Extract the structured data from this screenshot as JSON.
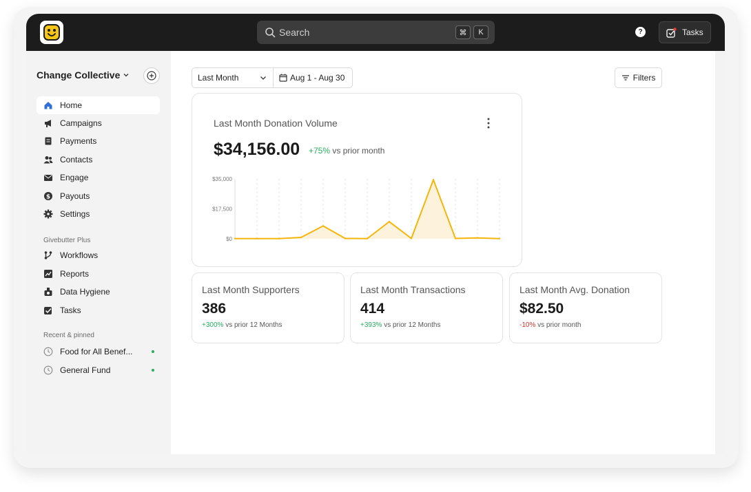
{
  "topbar": {
    "search_placeholder": "Search",
    "shortcut_keys": [
      "⌘",
      "K"
    ],
    "help_label": "?",
    "tasks_label": "Tasks"
  },
  "sidebar": {
    "org_name": "Change Collective",
    "nav": [
      {
        "label": "Home",
        "icon": "home-icon",
        "active": true
      },
      {
        "label": "Campaigns",
        "icon": "megaphone-icon"
      },
      {
        "label": "Payments",
        "icon": "receipt-icon"
      },
      {
        "label": "Contacts",
        "icon": "users-icon"
      },
      {
        "label": "Engage",
        "icon": "envelope-icon"
      },
      {
        "label": "Payouts",
        "icon": "dollar-icon"
      },
      {
        "label": "Settings",
        "icon": "gear-icon"
      }
    ],
    "plus_label": "Givebutter Plus",
    "plus_nav": [
      {
        "label": "Workflows",
        "icon": "workflow-icon"
      },
      {
        "label": "Reports",
        "icon": "chart-icon"
      },
      {
        "label": "Data Hygiene",
        "icon": "broom-icon"
      },
      {
        "label": "Tasks",
        "icon": "checkbox-icon"
      }
    ],
    "recent_label": "Recent & pinned",
    "recent": [
      {
        "label": "Food for All Benef...",
        "icon": "clock-icon"
      },
      {
        "label": "General Fund",
        "icon": "clock-icon"
      }
    ]
  },
  "toolbar": {
    "range_select": "Last Month",
    "date_range": "Aug 1 - Aug 30",
    "filters_label": "Filters"
  },
  "volume_card": {
    "title": "Last Month Donation Volume",
    "value": "$34,156.00",
    "change": "+75%",
    "change_suffix": "vs prior month"
  },
  "stats": [
    {
      "title": "Last Month Supporters",
      "value": "386",
      "change": "+300%",
      "change_suffix": "vs prior 12 Months",
      "trend": "up"
    },
    {
      "title": "Last Month Transactions",
      "value": "414",
      "change": "+393%",
      "change_suffix": "vs prior 12 Months",
      "trend": "up"
    },
    {
      "title": "Last Month Avg. Donation",
      "value": "$82.50",
      "change": "-10%",
      "change_suffix": "vs prior month",
      "trend": "down"
    }
  ],
  "chart_data": {
    "type": "area",
    "x": [
      1,
      2,
      3,
      4,
      5,
      6,
      7,
      8,
      9,
      10,
      11,
      12,
      13
    ],
    "series": [
      {
        "values": [
          100,
          100,
          100,
          800,
          7500,
          200,
          100,
          10000,
          200,
          34500,
          200,
          500,
          100
        ]
      }
    ],
    "ylim": [
      0,
      35000
    ],
    "yticks": [
      "$0",
      "$17,500",
      "$35,000"
    ],
    "grid": "vertical dashed",
    "color": "#f5b50a",
    "fill": "#fdf3dc"
  },
  "colors": {
    "topbar": "#1c1c1c",
    "accent": "#f5b50a",
    "positive": "#27ae60",
    "negative": "#d9302c",
    "home_icon": "#2f6fd6"
  }
}
